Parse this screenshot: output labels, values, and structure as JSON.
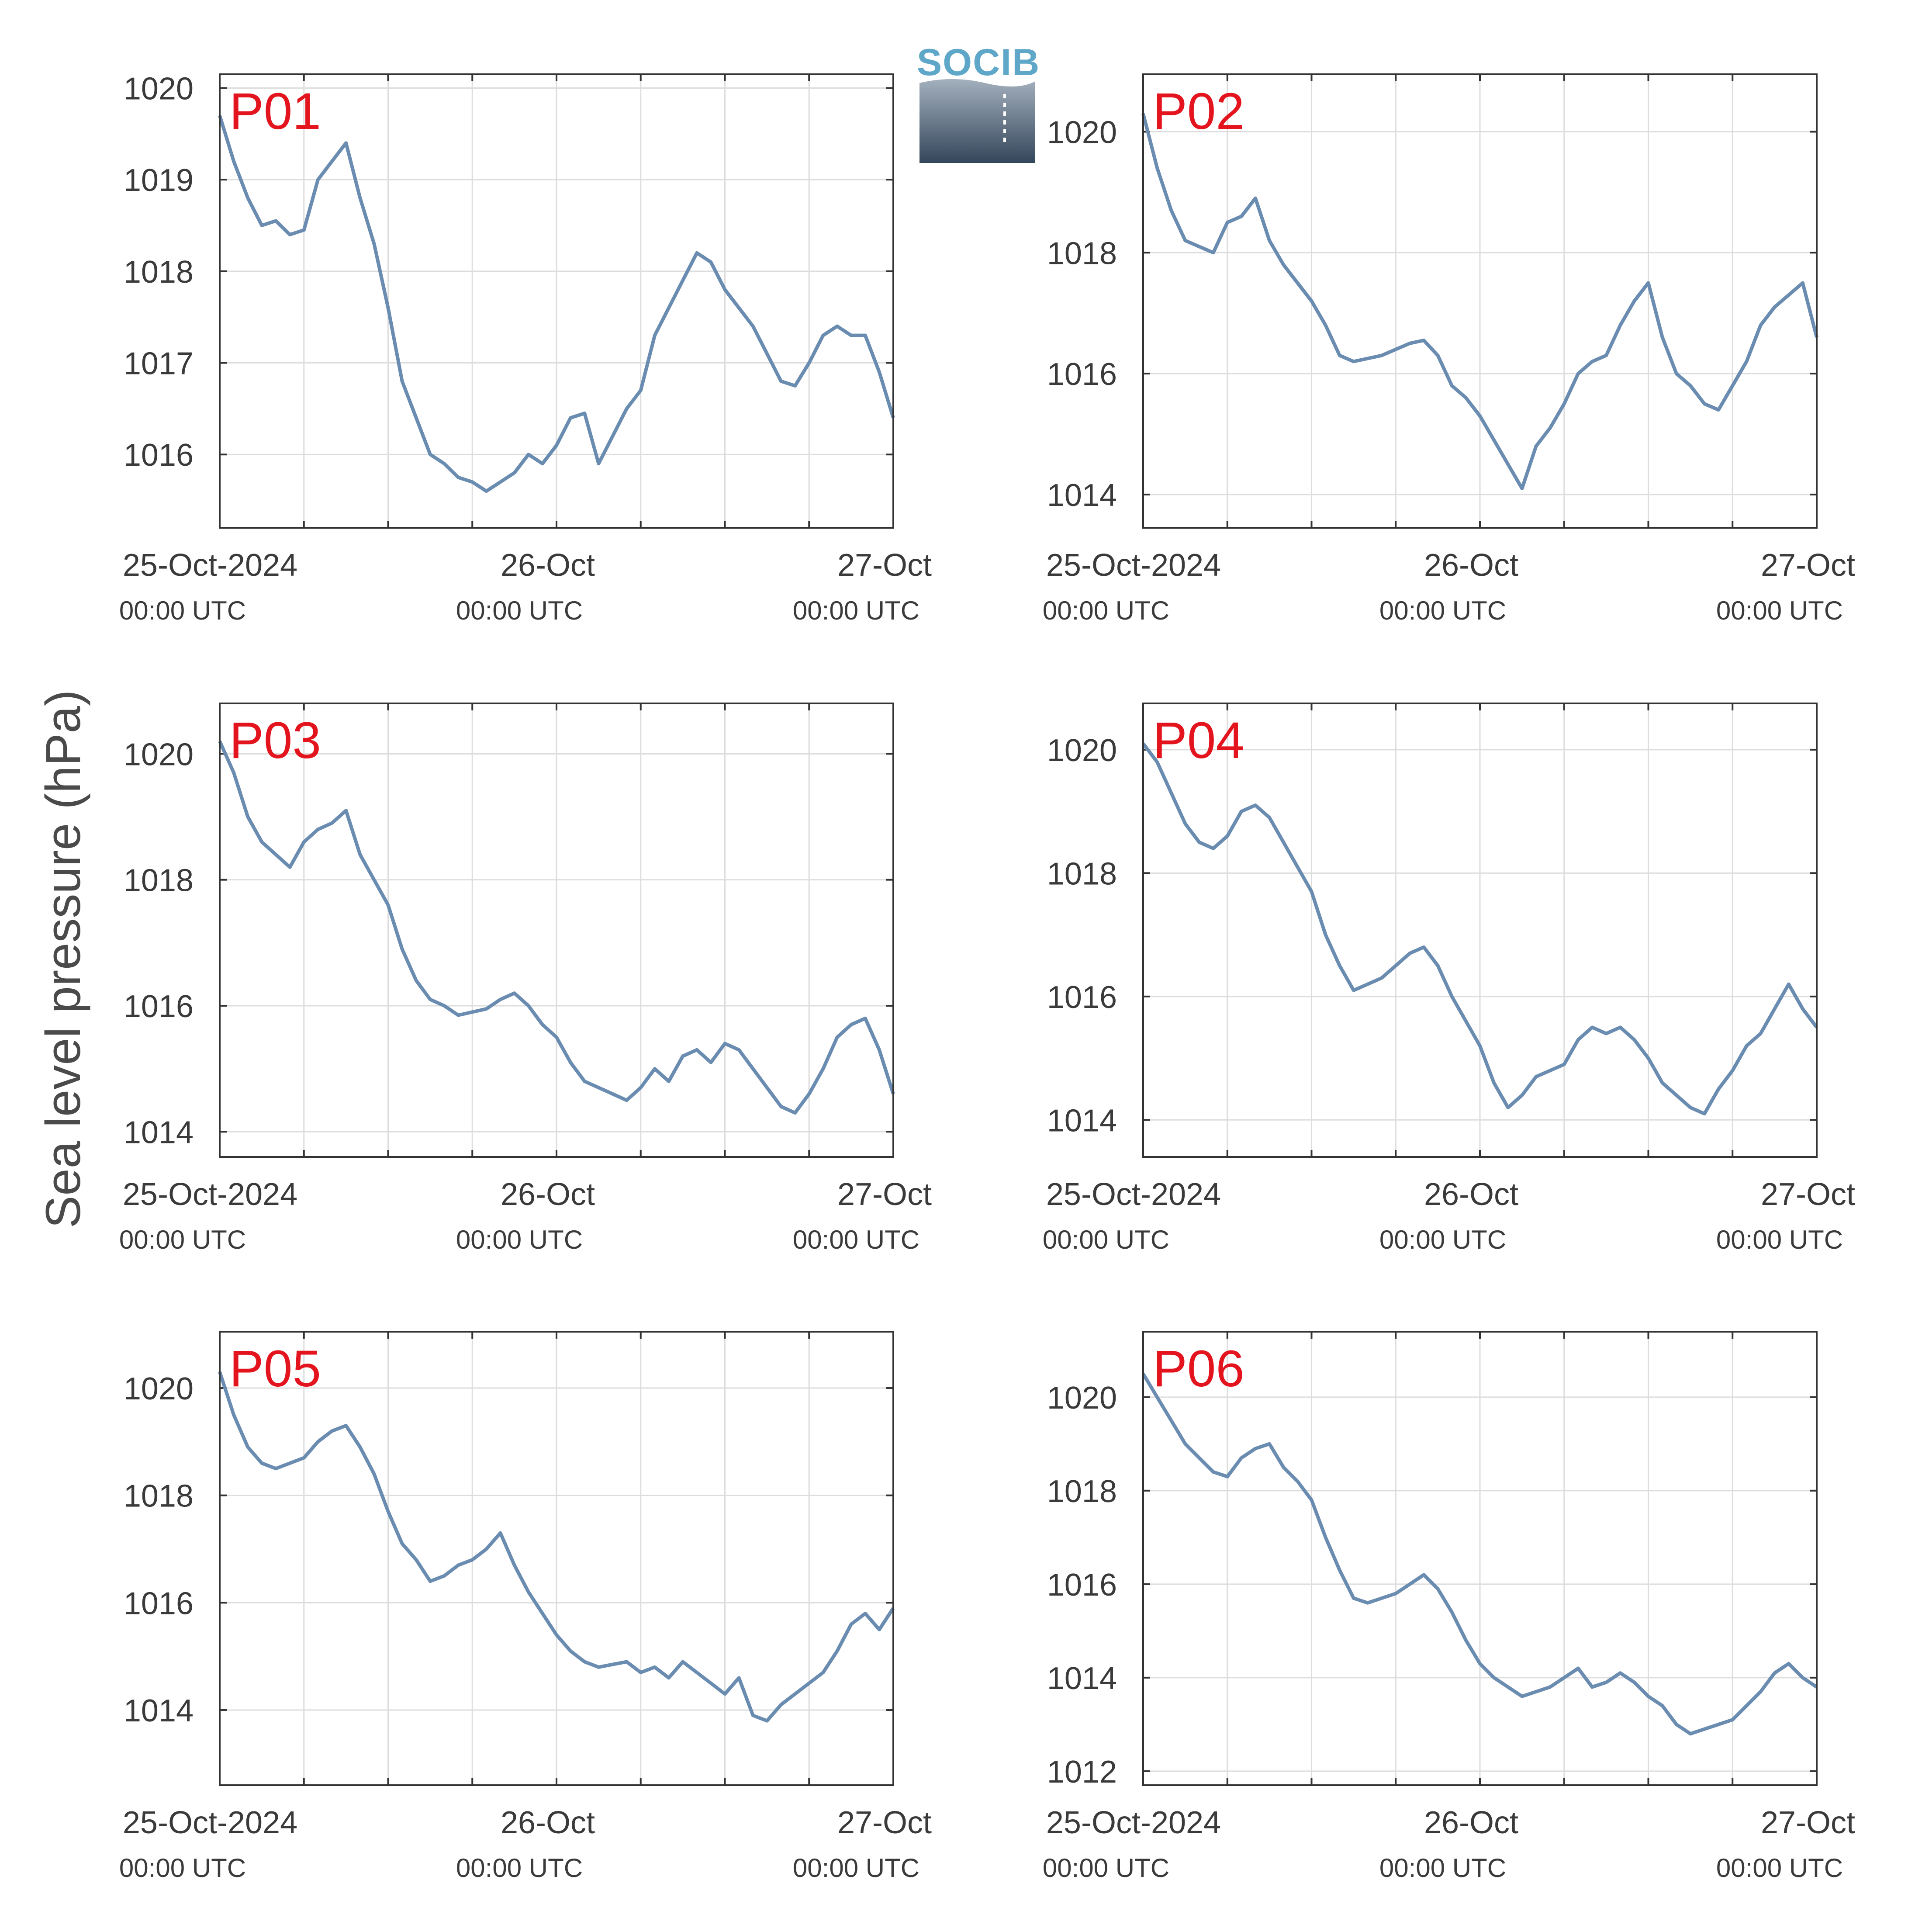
{
  "figure": {
    "ylabel": "Sea level pressure (hPa)",
    "line_color": "#6a8cb0",
    "label_color": "#e3141e",
    "grid_color": "#dddddd",
    "logo": {
      "text": "SOCIB",
      "text_color": "#5fa7c9",
      "gradient_top": "#a3b0bd",
      "gradient_bottom": "#34465b"
    }
  },
  "chart_data": [
    {
      "type": "line",
      "name": "P01",
      "x_unit": "hours since 25-Oct-2024 00:00 UTC",
      "xlim": [
        0,
        48
      ],
      "ylim": [
        1015.2,
        1020.15
      ],
      "yticks": [
        1016,
        1017,
        1018,
        1019,
        1020
      ],
      "xticks": [
        {
          "top": "25-Oct-2024",
          "bottom": "00:00 UTC"
        },
        {
          "top": "26-Oct",
          "bottom": "00:00 UTC"
        },
        {
          "top": "27-Oct",
          "bottom": "00:00 UTC"
        }
      ],
      "x": [
        0,
        1,
        2,
        3,
        4,
        5,
        6,
        7,
        8,
        9,
        10,
        11,
        12,
        13,
        14,
        15,
        16,
        17,
        18,
        19,
        20,
        21,
        22,
        23,
        24,
        25,
        26,
        27,
        28,
        29,
        30,
        31,
        32,
        33,
        34,
        35,
        36,
        37,
        38,
        39,
        40,
        41,
        42,
        43,
        44,
        45,
        46,
        47,
        48
      ],
      "y": [
        1019.7,
        1019.2,
        1018.8,
        1018.5,
        1018.55,
        1018.4,
        1018.45,
        1019.0,
        1019.2,
        1019.4,
        1018.8,
        1018.3,
        1017.6,
        1016.8,
        1016.4,
        1016.0,
        1015.9,
        1015.75,
        1015.7,
        1015.6,
        1015.7,
        1015.8,
        1016.0,
        1015.9,
        1016.1,
        1016.4,
        1016.45,
        1015.9,
        1016.2,
        1016.5,
        1016.7,
        1017.3,
        1017.6,
        1017.9,
        1018.2,
        1018.1,
        1017.8,
        1017.6,
        1017.4,
        1017.1,
        1016.8,
        1016.75,
        1017.0,
        1017.3,
        1017.4,
        1017.3,
        1017.3,
        1016.9,
        1016.4
      ]
    },
    {
      "type": "line",
      "name": "P02",
      "x_unit": "hours since 25-Oct-2024 00:00 UTC",
      "xlim": [
        0,
        48
      ],
      "ylim": [
        1013.45,
        1020.95
      ],
      "yticks": [
        1014,
        1016,
        1018,
        1020
      ],
      "xticks": [
        {
          "top": "25-Oct-2024",
          "bottom": "00:00 UTC"
        },
        {
          "top": "26-Oct",
          "bottom": "00:00 UTC"
        },
        {
          "top": "27-Oct",
          "bottom": "00:00 UTC"
        }
      ],
      "x": [
        0,
        1,
        2,
        3,
        4,
        5,
        6,
        7,
        8,
        9,
        10,
        11,
        12,
        13,
        14,
        15,
        16,
        17,
        18,
        19,
        20,
        21,
        22,
        23,
        24,
        25,
        26,
        27,
        28,
        29,
        30,
        31,
        32,
        33,
        34,
        35,
        36,
        37,
        38,
        39,
        40,
        41,
        42,
        43,
        44,
        45,
        46,
        47,
        48
      ],
      "y": [
        1020.3,
        1019.4,
        1018.7,
        1018.2,
        1018.1,
        1018.0,
        1018.5,
        1018.6,
        1018.9,
        1018.2,
        1017.8,
        1017.5,
        1017.2,
        1016.8,
        1016.3,
        1016.2,
        1016.25,
        1016.3,
        1016.4,
        1016.5,
        1016.55,
        1016.3,
        1015.8,
        1015.6,
        1015.3,
        1014.9,
        1014.5,
        1014.1,
        1014.8,
        1015.1,
        1015.5,
        1016.0,
        1016.2,
        1016.3,
        1016.8,
        1017.2,
        1017.5,
        1016.6,
        1016.0,
        1015.8,
        1015.5,
        1015.4,
        1015.8,
        1016.2,
        1016.8,
        1017.1,
        1017.3,
        1017.5,
        1016.6
      ]
    },
    {
      "type": "line",
      "name": "P03",
      "x_unit": "hours since 25-Oct-2024 00:00 UTC",
      "xlim": [
        0,
        48
      ],
      "ylim": [
        1013.6,
        1020.8
      ],
      "yticks": [
        1014,
        1016,
        1018,
        1020
      ],
      "xticks": [
        {
          "top": "25-Oct-2024",
          "bottom": "00:00 UTC"
        },
        {
          "top": "26-Oct",
          "bottom": "00:00 UTC"
        },
        {
          "top": "27-Oct",
          "bottom": "00:00 UTC"
        }
      ],
      "x": [
        0,
        1,
        2,
        3,
        4,
        5,
        6,
        7,
        8,
        9,
        10,
        11,
        12,
        13,
        14,
        15,
        16,
        17,
        18,
        19,
        20,
        21,
        22,
        23,
        24,
        25,
        26,
        27,
        28,
        29,
        30,
        31,
        32,
        33,
        34,
        35,
        36,
        37,
        38,
        39,
        40,
        41,
        42,
        43,
        44,
        45,
        46,
        47,
        48
      ],
      "y": [
        1020.2,
        1019.7,
        1019.0,
        1018.6,
        1018.4,
        1018.2,
        1018.6,
        1018.8,
        1018.9,
        1019.1,
        1018.4,
        1018.0,
        1017.6,
        1016.9,
        1016.4,
        1016.1,
        1016.0,
        1015.85,
        1015.9,
        1015.95,
        1016.1,
        1016.2,
        1016.0,
        1015.7,
        1015.5,
        1015.1,
        1014.8,
        1014.7,
        1014.6,
        1014.5,
        1014.7,
        1015.0,
        1014.8,
        1015.2,
        1015.3,
        1015.1,
        1015.4,
        1015.3,
        1015.0,
        1014.7,
        1014.4,
        1014.3,
        1014.6,
        1015.0,
        1015.5,
        1015.7,
        1015.8,
        1015.3,
        1014.6
      ]
    },
    {
      "type": "line",
      "name": "P04",
      "x_unit": "hours since 25-Oct-2024 00:00 UTC",
      "xlim": [
        0,
        48
      ],
      "ylim": [
        1013.4,
        1020.75
      ],
      "yticks": [
        1014,
        1016,
        1018,
        1020
      ],
      "xticks": [
        {
          "top": "25-Oct-2024",
          "bottom": "00:00 UTC"
        },
        {
          "top": "26-Oct",
          "bottom": "00:00 UTC"
        },
        {
          "top": "27-Oct",
          "bottom": "00:00 UTC"
        }
      ],
      "x": [
        0,
        1,
        2,
        3,
        4,
        5,
        6,
        7,
        8,
        9,
        10,
        11,
        12,
        13,
        14,
        15,
        16,
        17,
        18,
        19,
        20,
        21,
        22,
        23,
        24,
        25,
        26,
        27,
        28,
        29,
        30,
        31,
        32,
        33,
        34,
        35,
        36,
        37,
        38,
        39,
        40,
        41,
        42,
        43,
        44,
        45,
        46,
        47,
        48
      ],
      "y": [
        1020.1,
        1019.8,
        1019.3,
        1018.8,
        1018.5,
        1018.4,
        1018.6,
        1019.0,
        1019.1,
        1018.9,
        1018.5,
        1018.1,
        1017.7,
        1017.0,
        1016.5,
        1016.1,
        1016.2,
        1016.3,
        1016.5,
        1016.7,
        1016.8,
        1016.5,
        1016.0,
        1015.6,
        1015.2,
        1014.6,
        1014.2,
        1014.4,
        1014.7,
        1014.8,
        1014.9,
        1015.3,
        1015.5,
        1015.4,
        1015.5,
        1015.3,
        1015.0,
        1014.6,
        1014.4,
        1014.2,
        1014.1,
        1014.5,
        1014.8,
        1015.2,
        1015.4,
        1015.8,
        1016.2,
        1015.8,
        1015.5
      ]
    },
    {
      "type": "line",
      "name": "P05",
      "x_unit": "hours since 25-Oct-2024 00:00 UTC",
      "xlim": [
        0,
        48
      ],
      "ylim": [
        1012.6,
        1021.05
      ],
      "yticks": [
        1014,
        1016,
        1018,
        1020
      ],
      "xticks": [
        {
          "top": "25-Oct-2024",
          "bottom": "00:00 UTC"
        },
        {
          "top": "26-Oct",
          "bottom": "00:00 UTC"
        },
        {
          "top": "27-Oct",
          "bottom": "00:00 UTC"
        }
      ],
      "x": [
        0,
        1,
        2,
        3,
        4,
        5,
        6,
        7,
        8,
        9,
        10,
        11,
        12,
        13,
        14,
        15,
        16,
        17,
        18,
        19,
        20,
        21,
        22,
        23,
        24,
        25,
        26,
        27,
        28,
        29,
        30,
        31,
        32,
        33,
        34,
        35,
        36,
        37,
        38,
        39,
        40,
        41,
        42,
        43,
        44,
        45,
        46,
        47,
        48
      ],
      "y": [
        1020.3,
        1019.5,
        1018.9,
        1018.6,
        1018.5,
        1018.6,
        1018.7,
        1019.0,
        1019.2,
        1019.3,
        1018.9,
        1018.4,
        1017.7,
        1017.1,
        1016.8,
        1016.4,
        1016.5,
        1016.7,
        1016.8,
        1017.0,
        1017.3,
        1016.7,
        1016.2,
        1015.8,
        1015.4,
        1015.1,
        1014.9,
        1014.8,
        1014.85,
        1014.9,
        1014.7,
        1014.8,
        1014.6,
        1014.9,
        1014.7,
        1014.5,
        1014.3,
        1014.6,
        1013.9,
        1013.8,
        1014.1,
        1014.3,
        1014.5,
        1014.7,
        1015.1,
        1015.6,
        1015.8,
        1015.5,
        1015.9
      ]
    },
    {
      "type": "line",
      "name": "P06",
      "x_unit": "hours since 25-Oct-2024 00:00 UTC",
      "xlim": [
        0,
        48
      ],
      "ylim": [
        1011.7,
        1021.4
      ],
      "yticks": [
        1012,
        1014,
        1016,
        1018,
        1020
      ],
      "xticks": [
        {
          "top": "25-Oct-2024",
          "bottom": "00:00 UTC"
        },
        {
          "top": "26-Oct",
          "bottom": "00:00 UTC"
        },
        {
          "top": "27-Oct",
          "bottom": "00:00 UTC"
        }
      ],
      "x": [
        0,
        1,
        2,
        3,
        4,
        5,
        6,
        7,
        8,
        9,
        10,
        11,
        12,
        13,
        14,
        15,
        16,
        17,
        18,
        19,
        20,
        21,
        22,
        23,
        24,
        25,
        26,
        27,
        28,
        29,
        30,
        31,
        32,
        33,
        34,
        35,
        36,
        37,
        38,
        39,
        40,
        41,
        42,
        43,
        44,
        45,
        46,
        47,
        48
      ],
      "y": [
        1020.5,
        1020.0,
        1019.5,
        1019.0,
        1018.7,
        1018.4,
        1018.3,
        1018.7,
        1018.9,
        1019.0,
        1018.5,
        1018.2,
        1017.8,
        1017.0,
        1016.3,
        1015.7,
        1015.6,
        1015.7,
        1015.8,
        1016.0,
        1016.2,
        1015.9,
        1015.4,
        1014.8,
        1014.3,
        1014.0,
        1013.8,
        1013.6,
        1013.7,
        1013.8,
        1014.0,
        1014.2,
        1013.8,
        1013.9,
        1014.1,
        1013.9,
        1013.6,
        1013.4,
        1013.0,
        1012.8,
        1012.9,
        1013.0,
        1013.1,
        1013.4,
        1013.7,
        1014.1,
        1014.3,
        1014.0,
        1013.8
      ]
    }
  ]
}
